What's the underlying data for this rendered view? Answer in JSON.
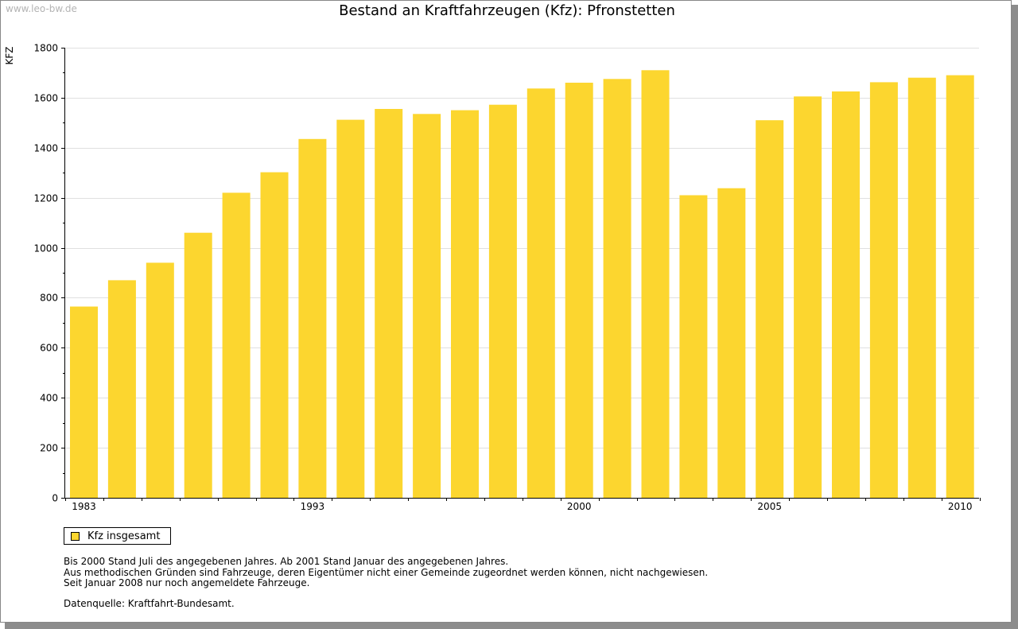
{
  "watermark": "www.leo-bw.de",
  "notes": [
    "Bis 2000 Stand Juli des angegebenen Jahres. Ab 2001 Stand Januar des angegebenen Jahres.",
    "Aus methodischen Gründen sind Fahrzeuge, deren Eigentümer nicht einer Gemeinde zugeordnet werden können, nicht nachgewiesen.",
    "Seit Januar 2008 nur noch angemeldete Fahrzeuge."
  ],
  "source": "Datenquelle: Kraftfahrt-Bundesamt.",
  "chart_data": {
    "type": "bar",
    "title": "Bestand an Kraftfahrzeugen (Kfz): Pfronstetten",
    "ylabel": "KFZ",
    "xlabel": "",
    "ylim": [
      0,
      1800
    ],
    "yticks": [
      0,
      200,
      400,
      600,
      800,
      1000,
      1200,
      1400,
      1600,
      1800
    ],
    "xtick_labels": [
      "1983",
      "1993",
      "2000",
      "2005",
      "2010"
    ],
    "grid": "horizontal",
    "legend_position": "bottom-left",
    "colors": {
      "bar": "#fcd62f",
      "grid": "#e0e0e0"
    },
    "categories": [
      "1983",
      "1988",
      "1989",
      "1990",
      "1991",
      "1992",
      "1993",
      "1994",
      "1995",
      "1996",
      "1997",
      "1998",
      "1999",
      "2000",
      "2001",
      "2002",
      "2003",
      "2004",
      "2005",
      "2006",
      "2007",
      "2008",
      "2009",
      "2010"
    ],
    "series": [
      {
        "name": "Kfz insgesamt",
        "values": [
          765,
          870,
          940,
          1060,
          1220,
          1302,
          1435,
          1512,
          1555,
          1535,
          1550,
          1572,
          1637,
          1660,
          1675,
          1710,
          1210,
          1238,
          1510,
          1605,
          1625,
          1662,
          1680,
          1690
        ]
      }
    ]
  }
}
